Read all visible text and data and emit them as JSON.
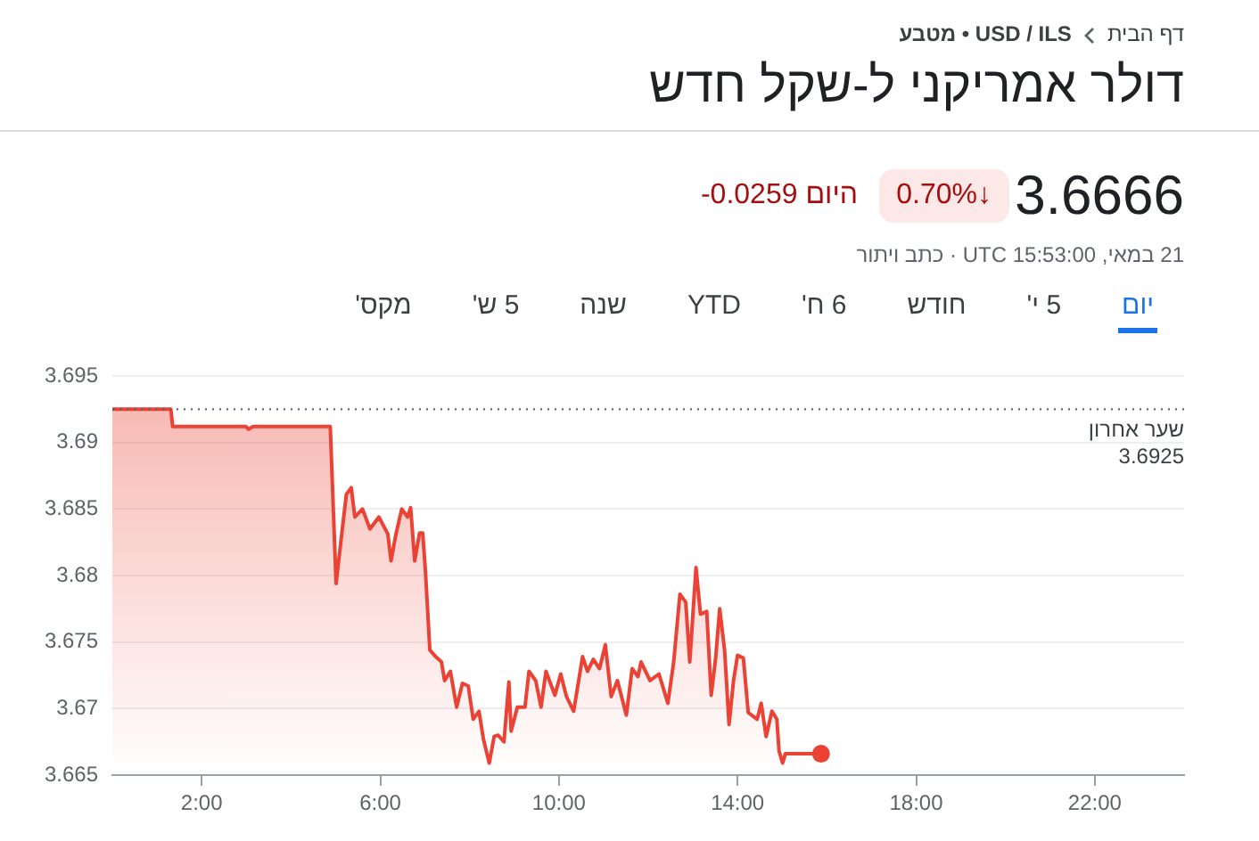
{
  "chart_data": {
    "type": "area",
    "title": "דולר אמריקני ל-שקל חדש",
    "annotations": [
      "דף הבית",
      "USD / ILS • מטבע",
      "3.6666",
      "0.70%↓",
      "-0.0259 היום",
      "21 במאי, UTC 15:53:00 · כתב ויתור",
      "יום",
      "5 י'",
      "חודש",
      "6 ח'",
      "YTD",
      "שנה",
      "5 ש'",
      "מקס'"
    ],
    "series": [
      {
        "color": "#ea4335",
        "x": [
          0,
          1.31,
          1.35,
          2.99,
          3.05,
          3.15,
          4.88,
          5.01,
          5.15,
          5.24,
          5.35,
          5.43,
          5.6,
          5.77,
          5.97,
          6.17,
          6.24,
          6.35,
          6.48,
          6.61,
          6.68,
          6.77,
          6.88,
          6.95,
          7.01,
          7.11,
          7.24,
          7.37,
          7.44,
          7.57,
          7.71,
          7.84,
          7.97,
          8.08,
          8.21,
          8.31,
          8.44,
          8.55,
          8.64,
          8.77,
          8.88,
          8.93,
          9.07,
          9.24,
          9.33,
          9.48,
          9.6,
          9.71,
          9.91,
          10.04,
          10.17,
          10.33,
          10.53,
          10.64,
          10.77,
          10.91,
          11.04,
          11.17,
          11.31,
          11.51,
          11.64,
          11.77,
          11.84,
          12.04,
          12.24,
          12.44,
          12.57,
          12.71,
          12.84,
          12.93,
          13.07,
          13.17,
          13.31,
          13.41,
          13.51,
          13.6,
          13.71,
          13.81,
          13.91,
          14.0,
          14.13,
          14.24,
          14.44,
          14.53,
          14.64,
          14.77,
          14.88,
          14.93,
          15.01,
          15.07,
          15.87
        ],
        "values": [
          3.6925,
          3.6925,
          3.6912,
          3.6912,
          3.691,
          3.6912,
          3.6912,
          3.6794,
          3.6835,
          3.6861,
          3.6866,
          3.6844,
          3.685,
          3.6835,
          3.6844,
          3.6831,
          3.6811,
          3.6831,
          3.685,
          3.6844,
          3.6851,
          3.6811,
          3.6832,
          3.6832,
          3.6804,
          3.6744,
          3.6739,
          3.6735,
          3.6721,
          3.6728,
          3.6701,
          3.6719,
          3.6717,
          3.6692,
          3.6698,
          3.6677,
          3.6659,
          3.6679,
          3.668,
          3.6675,
          3.672,
          3.6683,
          3.6701,
          3.6701,
          3.6728,
          3.6721,
          3.6701,
          3.6728,
          3.671,
          3.6726,
          3.6709,
          3.6698,
          3.6739,
          3.6728,
          3.6737,
          3.673,
          3.6748,
          3.6709,
          3.6721,
          3.6695,
          3.673,
          3.6724,
          3.6735,
          3.6721,
          3.6726,
          3.6704,
          3.6735,
          3.6786,
          3.678,
          3.6735,
          3.6806,
          3.6771,
          3.6773,
          3.671,
          3.6738,
          3.6775,
          3.6744,
          3.6688,
          3.6721,
          3.674,
          3.6738,
          3.6697,
          3.6692,
          3.6704,
          3.6679,
          3.6698,
          3.6692,
          3.6668,
          3.6659,
          3.6666,
          3.6666
        ]
      }
    ],
    "xlim": [
      0,
      24
    ],
    "xticks": [
      {
        "value": 2,
        "label": "2:00"
      },
      {
        "value": 6,
        "label": "6:00"
      },
      {
        "value": 10,
        "label": "10:00"
      },
      {
        "value": 14,
        "label": "14:00"
      },
      {
        "value": 18,
        "label": "18:00"
      },
      {
        "value": 22,
        "label": "22:00"
      }
    ],
    "ylim": [
      3.665,
      3.695
    ],
    "yticks": [
      3.665,
      3.67,
      3.675,
      3.68,
      3.685,
      3.69,
      3.695
    ],
    "ref_lines": [
      {
        "axis": "y",
        "value": 3.6925,
        "label": "שער אחרון\n3.6925",
        "line_style": "dotted",
        "color": "#5f6368"
      }
    ],
    "grid": "y",
    "legend": false,
    "marker": "none",
    "line_style": "solid"
  }
}
